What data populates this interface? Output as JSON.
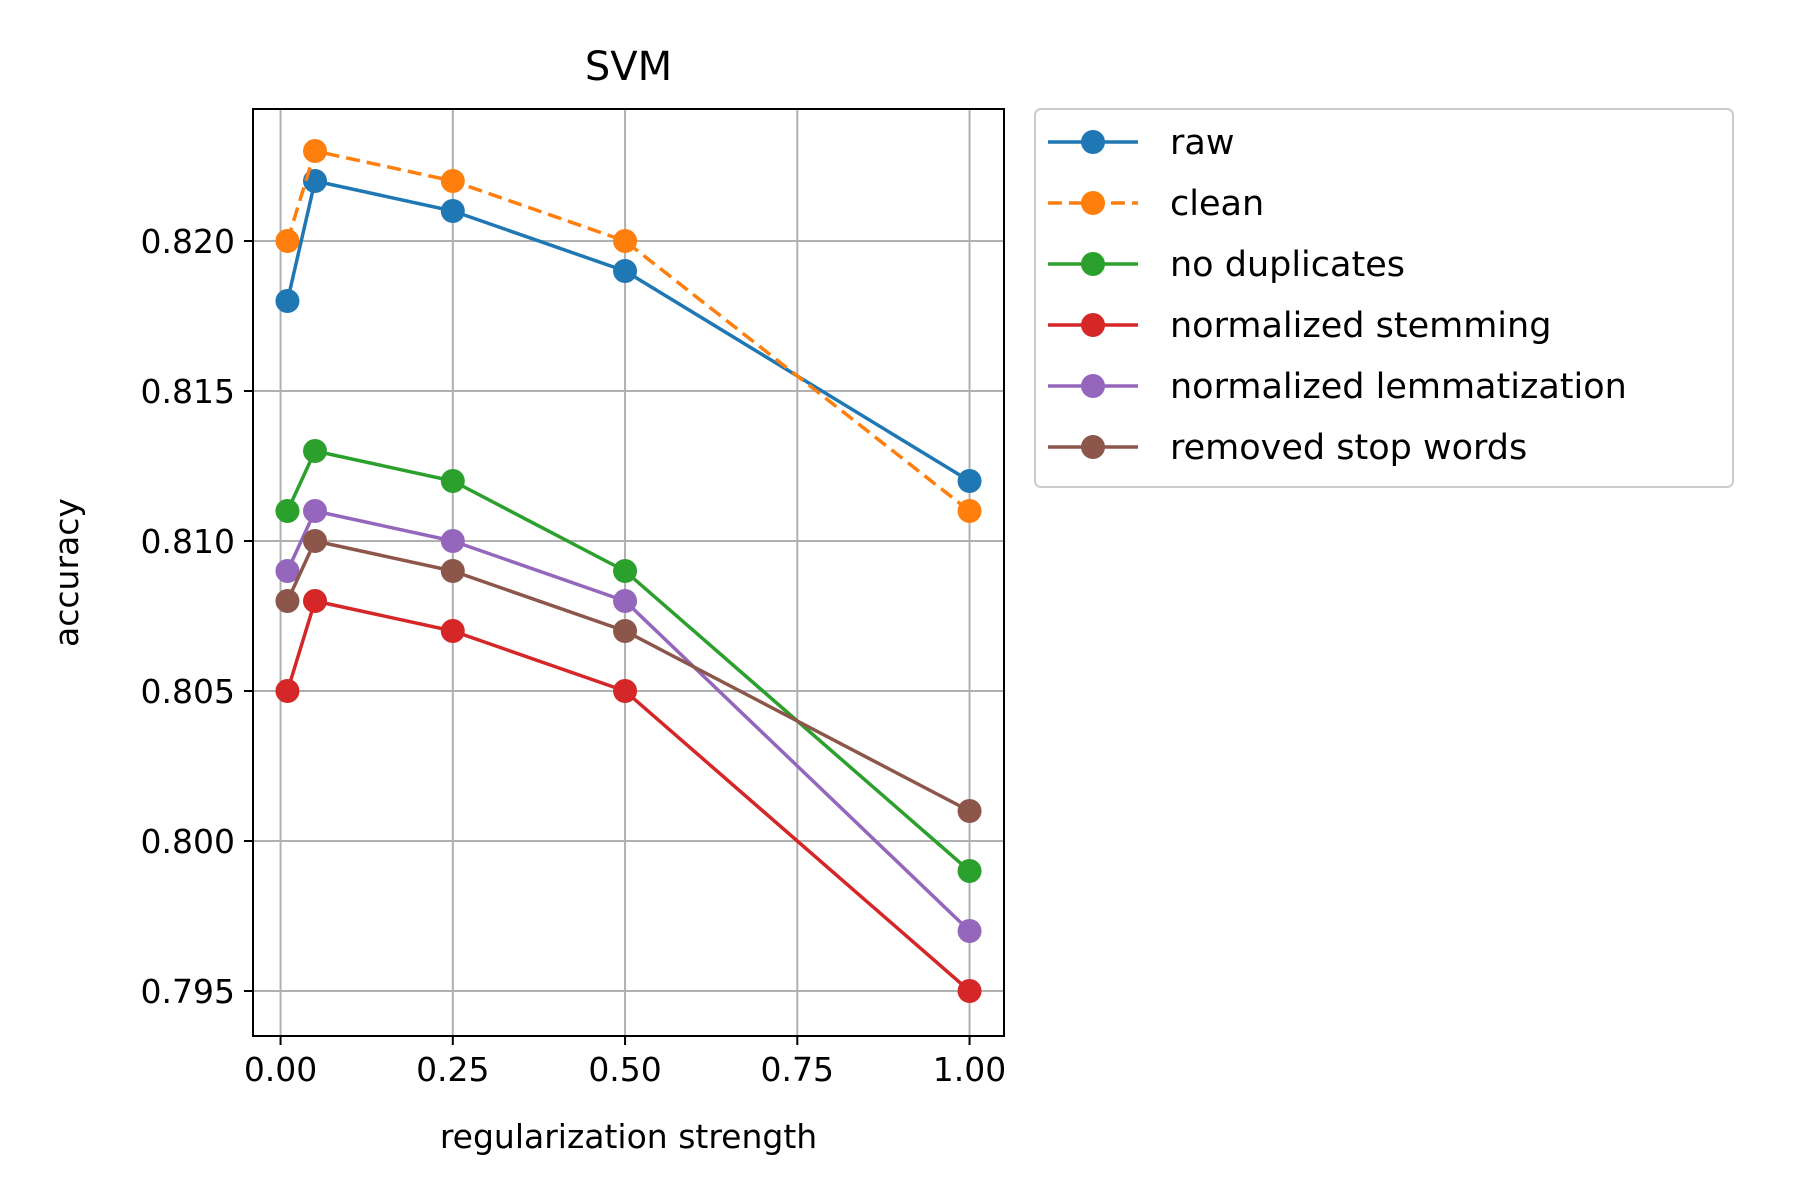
{
  "chart_data": {
    "type": "line",
    "title": "SVM",
    "xlabel": "regularization strength",
    "ylabel": "accuracy",
    "xlim": [
      -0.04,
      1.05
    ],
    "ylim": [
      0.7935,
      0.8244
    ],
    "xticks": [
      0.0,
      0.25,
      0.5,
      0.75,
      1.0
    ],
    "xtick_labels": [
      "0.00",
      "0.25",
      "0.50",
      "0.75",
      "1.00"
    ],
    "yticks": [
      0.795,
      0.8,
      0.805,
      0.81,
      0.815,
      0.82
    ],
    "ytick_labels": [
      "0.795",
      "0.800",
      "0.805",
      "0.810",
      "0.815",
      "0.820"
    ],
    "grid": true,
    "legend_position": "outside-right-top",
    "x": [
      0.01,
      0.05,
      0.25,
      0.5,
      1.0
    ],
    "series": [
      {
        "name": "raw",
        "color": "#1f77b4",
        "dashed": false,
        "values": [
          0.818,
          0.822,
          0.821,
          0.819,
          0.812
        ]
      },
      {
        "name": "clean",
        "color": "#ff7f0e",
        "dashed": true,
        "values": [
          0.82,
          0.823,
          0.822,
          0.82,
          0.811
        ]
      },
      {
        "name": "no duplicates",
        "color": "#2ca02c",
        "dashed": false,
        "values": [
          0.811,
          0.813,
          0.812,
          0.809,
          0.799
        ]
      },
      {
        "name": "normalized stemming",
        "color": "#d62728",
        "dashed": false,
        "values": [
          0.805,
          0.808,
          0.807,
          0.805,
          0.795
        ]
      },
      {
        "name": "normalized lemmatization",
        "color": "#9467bd",
        "dashed": false,
        "values": [
          0.809,
          0.811,
          0.81,
          0.808,
          0.797
        ]
      },
      {
        "name": "removed stop words",
        "color": "#8c564b",
        "dashed": false,
        "values": [
          0.808,
          0.81,
          0.809,
          0.807,
          0.801
        ]
      }
    ]
  }
}
